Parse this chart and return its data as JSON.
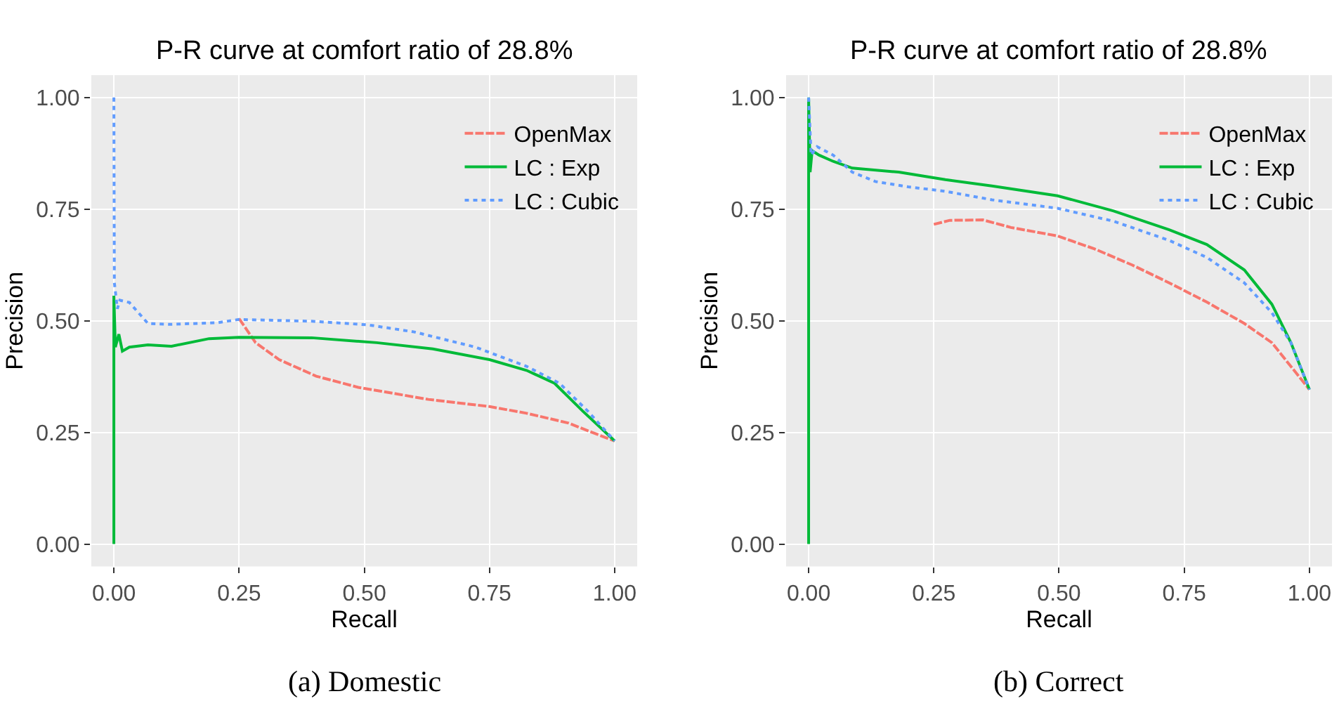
{
  "chart_data": [
    {
      "type": "line",
      "title": "P-R curve at comfort ratio of 28.8%",
      "xlabel": "Recall",
      "ylabel": "Precision",
      "annotations": [
        "(a) Domestic"
      ],
      "xlim": [
        -0.045,
        1.045
      ],
      "ylim": [
        -0.05,
        1.05
      ],
      "xticks": [
        {
          "value": 0,
          "label": "0.00"
        },
        {
          "value": 0.25,
          "label": "0.25"
        },
        {
          "value": 0.5,
          "label": "0.50"
        },
        {
          "value": 0.75,
          "label": "0.75"
        },
        {
          "value": 1,
          "label": "1.00"
        }
      ],
      "yticks": [
        {
          "value": 0,
          "label": "0.00"
        },
        {
          "value": 0.25,
          "label": "0.25"
        },
        {
          "value": 0.5,
          "label": "0.50"
        },
        {
          "value": 0.75,
          "label": "0.75"
        },
        {
          "value": 1,
          "label": "1.00"
        }
      ],
      "grid": true,
      "legend": "top right",
      "marker": "none",
      "series": [
        {
          "name": "OpenMax",
          "color": "#f8766d",
          "line_style": "dashed",
          "x": [
            0.25,
            0.283,
            0.33,
            0.404,
            0.488,
            0.628,
            0.75,
            0.824,
            0.908,
            0.955,
            1.0
          ],
          "values": [
            0.505,
            0.451,
            0.413,
            0.376,
            0.351,
            0.324,
            0.308,
            0.293,
            0.271,
            0.25,
            0.231
          ]
        },
        {
          "name": "LC : Exp",
          "color": "#00ba38",
          "line_style": "solid",
          "x": [
            0,
            0,
            0.003,
            0.01,
            0.017,
            0.031,
            0.068,
            0.115,
            0.19,
            0.25,
            0.395,
            0.525,
            0.637,
            0.75,
            0.824,
            0.88,
            0.936,
            1.0
          ],
          "values": [
            0,
            0.556,
            0.441,
            0.47,
            0.432,
            0.441,
            0.446,
            0.443,
            0.46,
            0.463,
            0.462,
            0.451,
            0.437,
            0.413,
            0.389,
            0.36,
            0.298,
            0.231
          ]
        },
        {
          "name": "LC : Cubic",
          "color": "#619cff",
          "line_style": "dotted",
          "x": [
            0,
            0.001,
            0.007,
            0.012,
            0.031,
            0.068,
            0.115,
            0.208,
            0.25,
            0.395,
            0.507,
            0.6,
            0.722,
            0.824,
            0.89,
            0.946,
            1.0
          ],
          "values": [
            1.0,
            0.585,
            0.527,
            0.546,
            0.541,
            0.494,
            0.492,
            0.496,
            0.503,
            0.499,
            0.491,
            0.475,
            0.441,
            0.398,
            0.36,
            0.298,
            0.231
          ]
        }
      ]
    },
    {
      "type": "line",
      "title": "P-R curve at comfort ratio of 28.8%",
      "xlabel": "Recall",
      "ylabel": "Precision",
      "annotations": [
        "(b) Correct"
      ],
      "xlim": [
        -0.045,
        1.045
      ],
      "ylim": [
        -0.05,
        1.05
      ],
      "xticks": [
        {
          "value": 0,
          "label": "0.00"
        },
        {
          "value": 0.25,
          "label": "0.25"
        },
        {
          "value": 0.5,
          "label": "0.50"
        },
        {
          "value": 0.75,
          "label": "0.75"
        },
        {
          "value": 1,
          "label": "1.00"
        }
      ],
      "yticks": [
        {
          "value": 0,
          "label": "0.00"
        },
        {
          "value": 0.25,
          "label": "0.25"
        },
        {
          "value": 0.5,
          "label": "0.50"
        },
        {
          "value": 0.75,
          "label": "0.75"
        },
        {
          "value": 1,
          "label": "1.00"
        }
      ],
      "grid": true,
      "legend": "top right",
      "marker": "none",
      "series": [
        {
          "name": "OpenMax",
          "color": "#f8766d",
          "line_style": "dashed",
          "x": [
            0.25,
            0.282,
            0.348,
            0.404,
            0.497,
            0.571,
            0.646,
            0.72,
            0.795,
            0.87,
            0.925,
            1.0
          ],
          "values": [
            0.716,
            0.725,
            0.726,
            0.709,
            0.69,
            0.661,
            0.625,
            0.585,
            0.542,
            0.494,
            0.451,
            0.346
          ]
        },
        {
          "name": "LC : Exp",
          "color": "#00ba38",
          "line_style": "solid",
          "x": [
            0,
            0,
            0.003,
            0.007,
            0.021,
            0.049,
            0.087,
            0.18,
            0.273,
            0.366,
            0.497,
            0.609,
            0.72,
            0.795,
            0.87,
            0.925,
            0.963,
            1.0
          ],
          "values": [
            0,
            1.0,
            0.833,
            0.881,
            0.871,
            0.857,
            0.842,
            0.833,
            0.816,
            0.802,
            0.78,
            0.746,
            0.704,
            0.671,
            0.614,
            0.537,
            0.451,
            0.346
          ]
        },
        {
          "name": "LC : Cubic",
          "color": "#619cff",
          "line_style": "dotted",
          "x": [
            0,
            0.005,
            0.017,
            0.049,
            0.087,
            0.133,
            0.199,
            0.273,
            0.366,
            0.497,
            0.609,
            0.72,
            0.795,
            0.87,
            0.925,
            0.963,
            1.0
          ],
          "values": [
            1.0,
            0.871,
            0.89,
            0.871,
            0.833,
            0.812,
            0.8,
            0.79,
            0.771,
            0.752,
            0.723,
            0.68,
            0.642,
            0.585,
            0.518,
            0.451,
            0.346
          ]
        }
      ]
    }
  ]
}
